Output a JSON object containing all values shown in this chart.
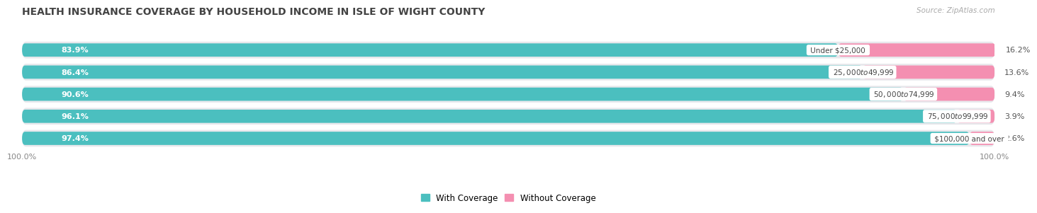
{
  "title": "HEALTH INSURANCE COVERAGE BY HOUSEHOLD INCOME IN ISLE OF WIGHT COUNTY",
  "source": "Source: ZipAtlas.com",
  "categories": [
    "Under $25,000",
    "$25,000 to $49,999",
    "$50,000 to $74,999",
    "$75,000 to $99,999",
    "$100,000 and over"
  ],
  "with_coverage": [
    83.9,
    86.4,
    90.6,
    96.1,
    97.4
  ],
  "without_coverage": [
    16.2,
    13.6,
    9.4,
    3.9,
    2.6
  ],
  "color_with": "#4BBFBF",
  "color_without": "#F48FB1",
  "row_bg": "#E8E8EC",
  "title_fontsize": 10,
  "bar_height": 0.6,
  "xlim": [
    0,
    100
  ]
}
